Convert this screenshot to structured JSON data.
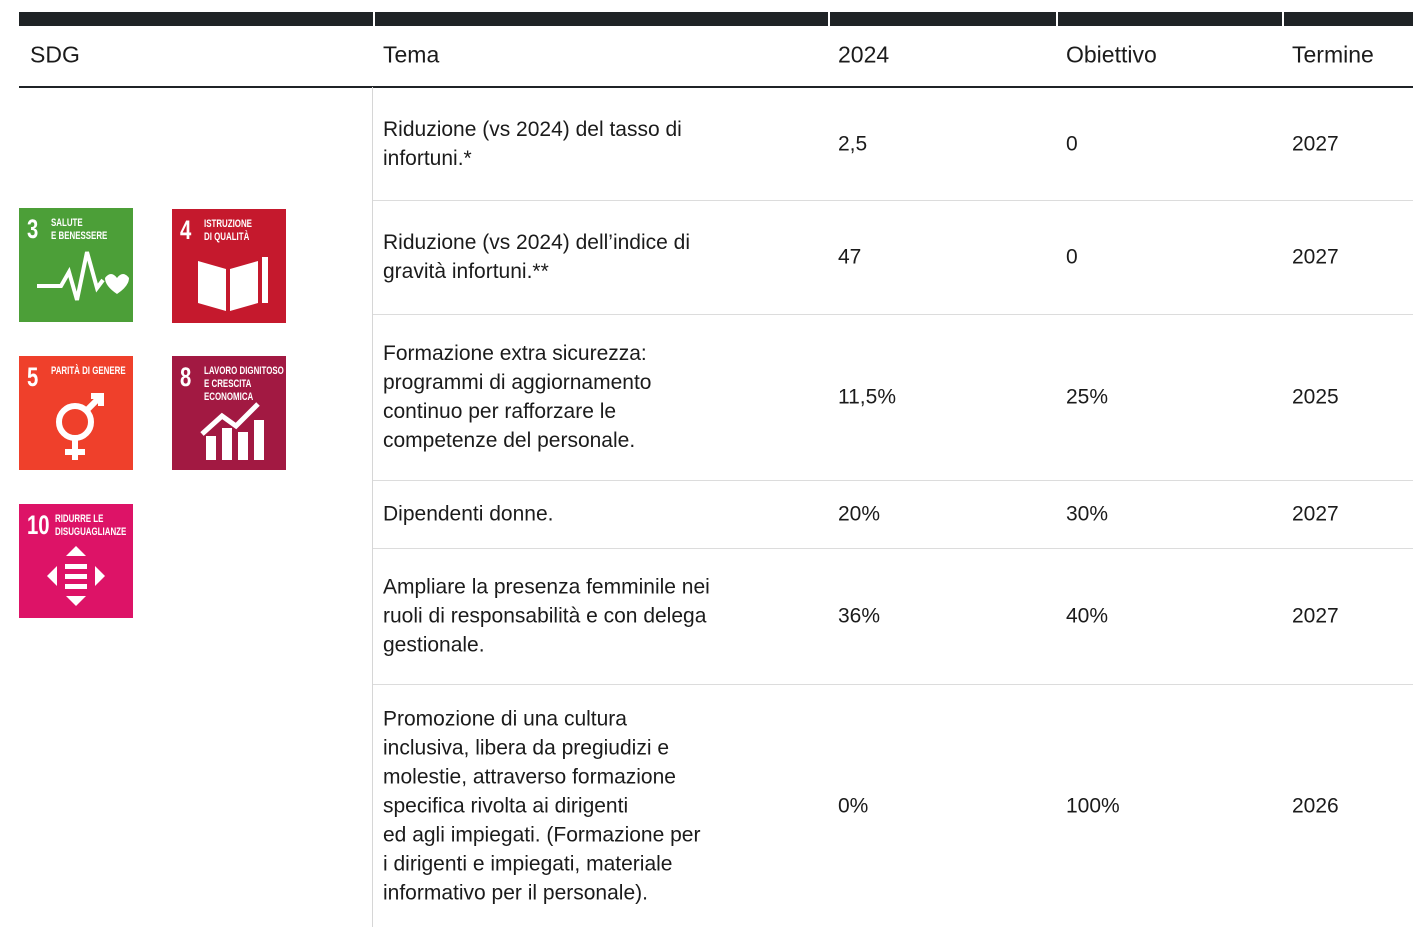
{
  "header": {
    "columns": [
      "SDG",
      "Tema",
      "2024",
      "Obiettivo",
      "Termine"
    ]
  },
  "sdg_icons": [
    {
      "number": "3",
      "label": "SALUTE\nE BENESSERE",
      "color": "#4c9f38"
    },
    {
      "number": "4",
      "label": "ISTRUZIONE\nDI QUALITÀ",
      "color": "#c5192d"
    },
    {
      "number": "5",
      "label": "PARITÀ DI GENERE",
      "color": "#ef402b"
    },
    {
      "number": "8",
      "label": "LAVORO DIGNITOSO\nE CRESCITA\nECONOMICA",
      "color": "#a21942"
    },
    {
      "number": "10",
      "label": "RIDURRE LE\nDISUGUAGLIANZE",
      "color": "#dd1367"
    }
  ],
  "table": {
    "rows": [
      [
        "Riduzione (vs 2024) del tasso di\ninfortuni.*",
        "2,5",
        "0",
        "2027"
      ],
      [
        "Riduzione (vs 2024) dell’indice di\ngravità infortuni.**",
        "47",
        "0",
        "2027"
      ],
      [
        "Formazione extra sicurezza:\nprogrammi di aggiornamento\ncontinuo per rafforzare le\ncompetenze del personale.",
        "11,5%",
        "25%",
        "2025"
      ],
      [
        "Dipendenti donne.",
        "20%",
        "30%",
        "2027"
      ],
      [
        "Ampliare la presenza femminile nei\nruoli di responsabilità e con delega\ngestionale.",
        "36%",
        "40%",
        "2027"
      ],
      [
        "Promozione di una cultura\ninclusiva, libera da pregiudizi e\nmolestie, attraverso formazione\nspecifica rivolta ai dirigenti\ned agli impiegati. (Formazione per\ni dirigenti e impiegati, materiale\ninformativo per il personale).",
        "0%",
        "100%",
        "2026"
      ]
    ]
  }
}
